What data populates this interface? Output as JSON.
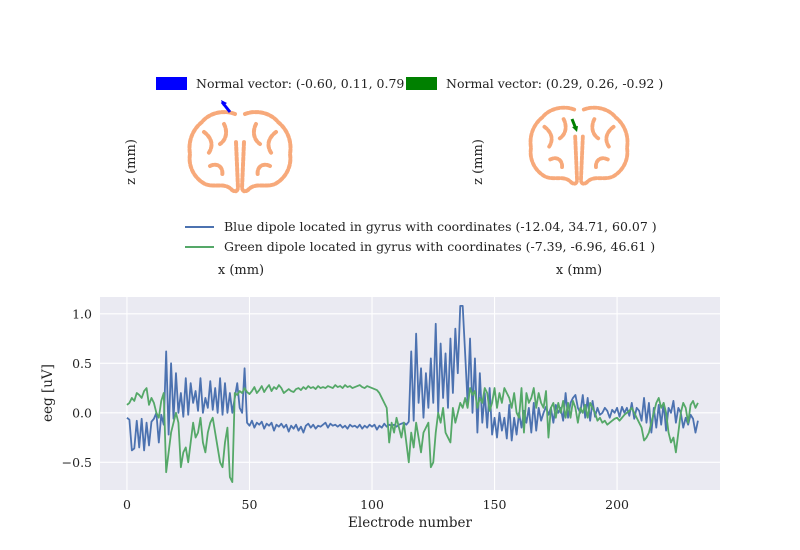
{
  "top_legend": [
    {
      "label": "Normal vector:  (-0.60, 0.11, 0.79 )",
      "color": "#0000ff"
    },
    {
      "label": "Normal vector:  (0.29, 0.26, -0.92 )",
      "color": "#008000"
    }
  ],
  "brain_panels": [
    {
      "xlabel": "x (mm)",
      "ylabel": "z (mm)",
      "outline_color": "#f7a97a",
      "arrow_color": "#0000ff"
    },
    {
      "xlabel": "x (mm)",
      "ylabel": "z (mm)",
      "outline_color": "#f7a97a",
      "arrow_color": "#008000"
    }
  ],
  "dipole_legend": [
    {
      "label": "Blue dipole located in gyrus with coordinates (-12.04, 34.71, 60.07 )",
      "color": "#4c72b0"
    },
    {
      "label": "Green dipole located in gyrus with coordinates (-7.39, -6.96, 46.61 )",
      "color": "#55a868"
    }
  ],
  "chart_data": {
    "type": "line",
    "xlabel": "Electrode number",
    "ylabel": "eeg [uV]",
    "xlim": [
      -11,
      242
    ],
    "ylim": [
      -0.78,
      1.17
    ],
    "xticks": [
      0,
      50,
      100,
      150,
      200
    ],
    "xtick_labels": [
      "0",
      "50",
      "100",
      "150",
      "200"
    ],
    "yticks": [
      -0.5,
      0.0,
      0.5,
      1.0
    ],
    "ytick_labels": [
      "−0.5",
      "0.0",
      "0.5",
      "1.0"
    ],
    "grid": true,
    "background": "#eaeaf2",
    "series": [
      {
        "color": "#4c72b0",
        "values": [
          -0.05,
          -0.07,
          -0.38,
          -0.36,
          -0.08,
          -0.35,
          -0.06,
          -0.38,
          -0.1,
          -0.33,
          -0.09,
          -0.06,
          0.0,
          -0.3,
          -0.02,
          -0.12,
          0.62,
          -0.22,
          0.5,
          -0.06,
          0.4,
          0.0,
          0.2,
          -0.04,
          0.35,
          -0.02,
          0.3,
          0.1,
          0.22,
          0.02,
          0.35,
          0.0,
          0.15,
          0.05,
          0.32,
          0.03,
          0.25,
          0.0,
          0.35,
          -0.02,
          0.3,
          0.0,
          0.2,
          0.0,
          0.15,
          0.3,
          0.05,
          0.0,
          0.45,
          -0.1,
          -0.13,
          -0.08,
          -0.15,
          -0.1,
          -0.12,
          -0.09,
          -0.16,
          -0.11,
          -0.13,
          -0.1,
          -0.18,
          -0.12,
          -0.14,
          -0.11,
          -0.15,
          -0.12,
          -0.19,
          -0.13,
          -0.16,
          -0.12,
          -0.18,
          -0.14,
          -0.2,
          -0.13,
          -0.11,
          -0.15,
          -0.12,
          -0.16,
          -0.13,
          -0.14,
          -0.12,
          -0.1,
          -0.15,
          -0.11,
          -0.13,
          -0.12,
          -0.14,
          -0.12,
          -0.15,
          -0.13,
          -0.16,
          -0.12,
          -0.14,
          -0.13,
          -0.15,
          -0.12,
          -0.16,
          -0.13,
          -0.15,
          -0.12,
          -0.14,
          -0.12,
          -0.17,
          -0.13,
          -0.15,
          -0.11,
          -0.14,
          -0.12,
          -0.13,
          -0.12,
          -0.14,
          -0.12,
          -0.11,
          -0.1,
          -0.12,
          -0.09,
          0.62,
          -0.08,
          0.8,
          0.1,
          0.45,
          -0.05,
          0.4,
          0.05,
          0.55,
          0.1,
          0.9,
          0.0,
          0.7,
          0.15,
          0.6,
          0.05,
          0.75,
          0.2,
          0.85,
          0.4,
          1.08,
          1.08,
          0.6,
          0.1,
          0.75,
          0.0,
          0.55,
          -0.2,
          0.4,
          -0.1,
          0.2,
          -0.15,
          0.25,
          -0.22,
          -0.05,
          -0.25,
          0.0,
          -0.18,
          -0.05,
          -0.26,
          0.08,
          -0.28,
          -0.05,
          -0.22,
          0.0,
          -0.15,
          0.02,
          -0.1,
          0.05,
          -0.2,
          0.1,
          -0.18,
          0.05,
          -0.08,
          0.0,
          0.06,
          -0.02,
          0.05,
          -0.1,
          0.08,
          0.0,
          0.05,
          -0.08,
          0.2,
          -0.05,
          0.1,
          0.15,
          0.18,
          0.05,
          0.0,
          0.18,
          -0.05,
          0.15,
          -0.08,
          0.12,
          -0.04,
          0.05,
          -0.02,
          0.0,
          0.05,
          0.02,
          -0.05,
          0.03,
          0.0,
          0.05,
          -0.04,
          0.06,
          0.0,
          0.05,
          -0.03,
          0.1,
          -0.06,
          0.05,
          0.02,
          -0.08,
          0.15,
          -0.1,
          0.1,
          -0.2,
          0.05,
          -0.15,
          0.08,
          -0.12,
          0.1,
          -0.18,
          0.05,
          0.0,
          0.12,
          -0.1,
          0.05,
          0.0,
          -0.15,
          -0.05,
          -0.12,
          -0.02,
          -0.06,
          -0.2,
          -0.08
        ]
      },
      {
        "color": "#55a868",
        "values": [
          0.08,
          0.1,
          0.15,
          0.12,
          0.2,
          0.18,
          0.15,
          0.22,
          0.25,
          0.08,
          0.15,
          0.1,
          0.0,
          -0.05,
          0.12,
          0.2,
          -0.6,
          -0.4,
          -0.2,
          -0.1,
          0.0,
          -0.1,
          -0.55,
          -0.4,
          -0.35,
          -0.5,
          -0.3,
          -0.1,
          -0.25,
          -0.2,
          -0.05,
          -0.3,
          -0.4,
          -0.2,
          -0.1,
          -0.05,
          -0.2,
          -0.35,
          -0.5,
          -0.55,
          -0.3,
          -0.15,
          -0.65,
          -0.7,
          0.2,
          0.18,
          0.22,
          0.2,
          0.25,
          0.21,
          0.19,
          0.22,
          0.26,
          0.2,
          0.23,
          0.27,
          0.21,
          0.25,
          0.28,
          0.22,
          0.26,
          0.24,
          0.28,
          0.25,
          0.2,
          0.22,
          0.24,
          0.22,
          0.21,
          0.24,
          0.25,
          0.23,
          0.26,
          0.24,
          0.27,
          0.25,
          0.26,
          0.24,
          0.27,
          0.25,
          0.26,
          0.25,
          0.27,
          0.26,
          0.25,
          0.28,
          0.26,
          0.27,
          0.25,
          0.28,
          0.26,
          0.27,
          0.25,
          0.26,
          0.27,
          0.28,
          0.26,
          0.25,
          0.27,
          0.26,
          0.25,
          0.24,
          0.23,
          0.2,
          0.15,
          0.1,
          0.05,
          -0.3,
          -0.1,
          -0.2,
          -0.05,
          -0.15,
          -0.25,
          -0.1,
          -0.3,
          -0.5,
          -0.2,
          -0.35,
          -0.1,
          -0.25,
          -0.4,
          -0.2,
          -0.15,
          -0.1,
          -0.55,
          -0.5,
          -0.2,
          0.0,
          -0.1,
          0.05,
          -0.2,
          -0.25,
          -0.3,
          0.05,
          -0.1,
          0.0,
          0.1,
          0.05,
          0.15,
          0.05,
          0.25,
          0.18,
          0.22,
          0.05,
          0.15,
          0.1,
          0.25,
          0.2,
          0.02,
          0.1,
          0.25,
          0.05,
          0.2,
          0.1,
          0.25,
          0.2,
          0.15,
          0.05,
          0.2,
          0.0,
          -0.05,
          0.25,
          -0.2,
          0.2,
          0.1,
          0.15,
          0.25,
          0.05,
          0.2,
          0.1,
          0.05,
          0.22,
          -0.25,
          0.05,
          0.1,
          -0.05,
          0.1,
          0.0,
          0.12,
          -0.05,
          0.1,
          -0.05,
          0.12,
          0.05,
          -0.1,
          0.05,
          0.0,
          0.08,
          -0.05,
          0.1,
          0.05,
          0.0,
          -0.08,
          -0.05,
          -0.1,
          -0.08,
          -0.12,
          -0.1,
          -0.08,
          -0.06,
          -0.05,
          -0.08,
          -0.05,
          -0.02,
          0.0,
          0.02,
          0.05,
          0.0,
          -0.05,
          -0.1,
          -0.15,
          -0.28,
          -0.25,
          -0.2,
          -0.1,
          0.0,
          0.1,
          0.15,
          0.05,
          0.1,
          0.0,
          -0.2,
          -0.3,
          -0.25,
          -0.4,
          -0.2,
          0.0,
          0.1,
          0.05,
          -0.1,
          0.08,
          0.12,
          0.05,
          0.1
        ]
      }
    ]
  }
}
